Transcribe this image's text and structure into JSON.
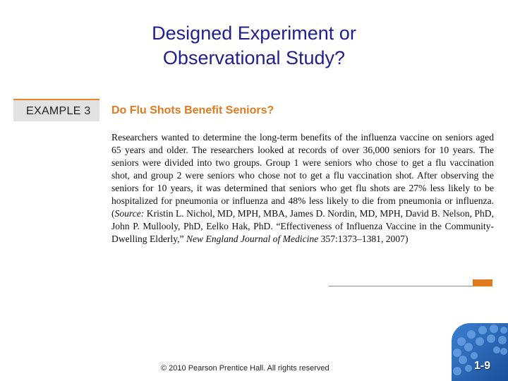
{
  "slide": {
    "title_line1": "Designed Experiment or",
    "title_line2": "Observational Study?"
  },
  "example": {
    "label": "EXAMPLE 3",
    "heading": "Do Flu Shots Benefit Seniors?",
    "body": "Researchers wanted to determine the long-term benefits of the influenza vaccine on seniors aged 65 years and older. The researchers looked at records of over 36,000 seniors for 10 years. The seniors were divided into two groups. Group 1 were seniors who chose to get a flu vaccination shot, and group 2 were seniors who chose not to get a flu vaccination shot. After observing the seniors for 10 years, it was determined that seniors who get flu shots are 27% less likely to be hospitalized for pneumonia or influenza and 48% less likely to die from pneumonia or influenza. (",
    "source_label": "Source:",
    "source_text": " Kristin L. Nichol, MD, MPH, MBA, James D. Nordin, MD, MPH, David B. Nelson, PhD, John P. Mullooly, PhD, Eelko Hak, PhD. “Effectiveness of Influenza Vaccine in the Community-Dwelling Elderly,” ",
    "journal": "New England Journal of Medicine",
    "citation_end": " 357:1373–1381, 2007)"
  },
  "footer": {
    "copyright": "© 2010 Pearson Prentice Hall. All rights reserved",
    "page_number": "1-9"
  },
  "colors": {
    "title": "#1f1f8f",
    "accent_orange": "#e07a1f",
    "badge_blue": "#2a66b8"
  }
}
